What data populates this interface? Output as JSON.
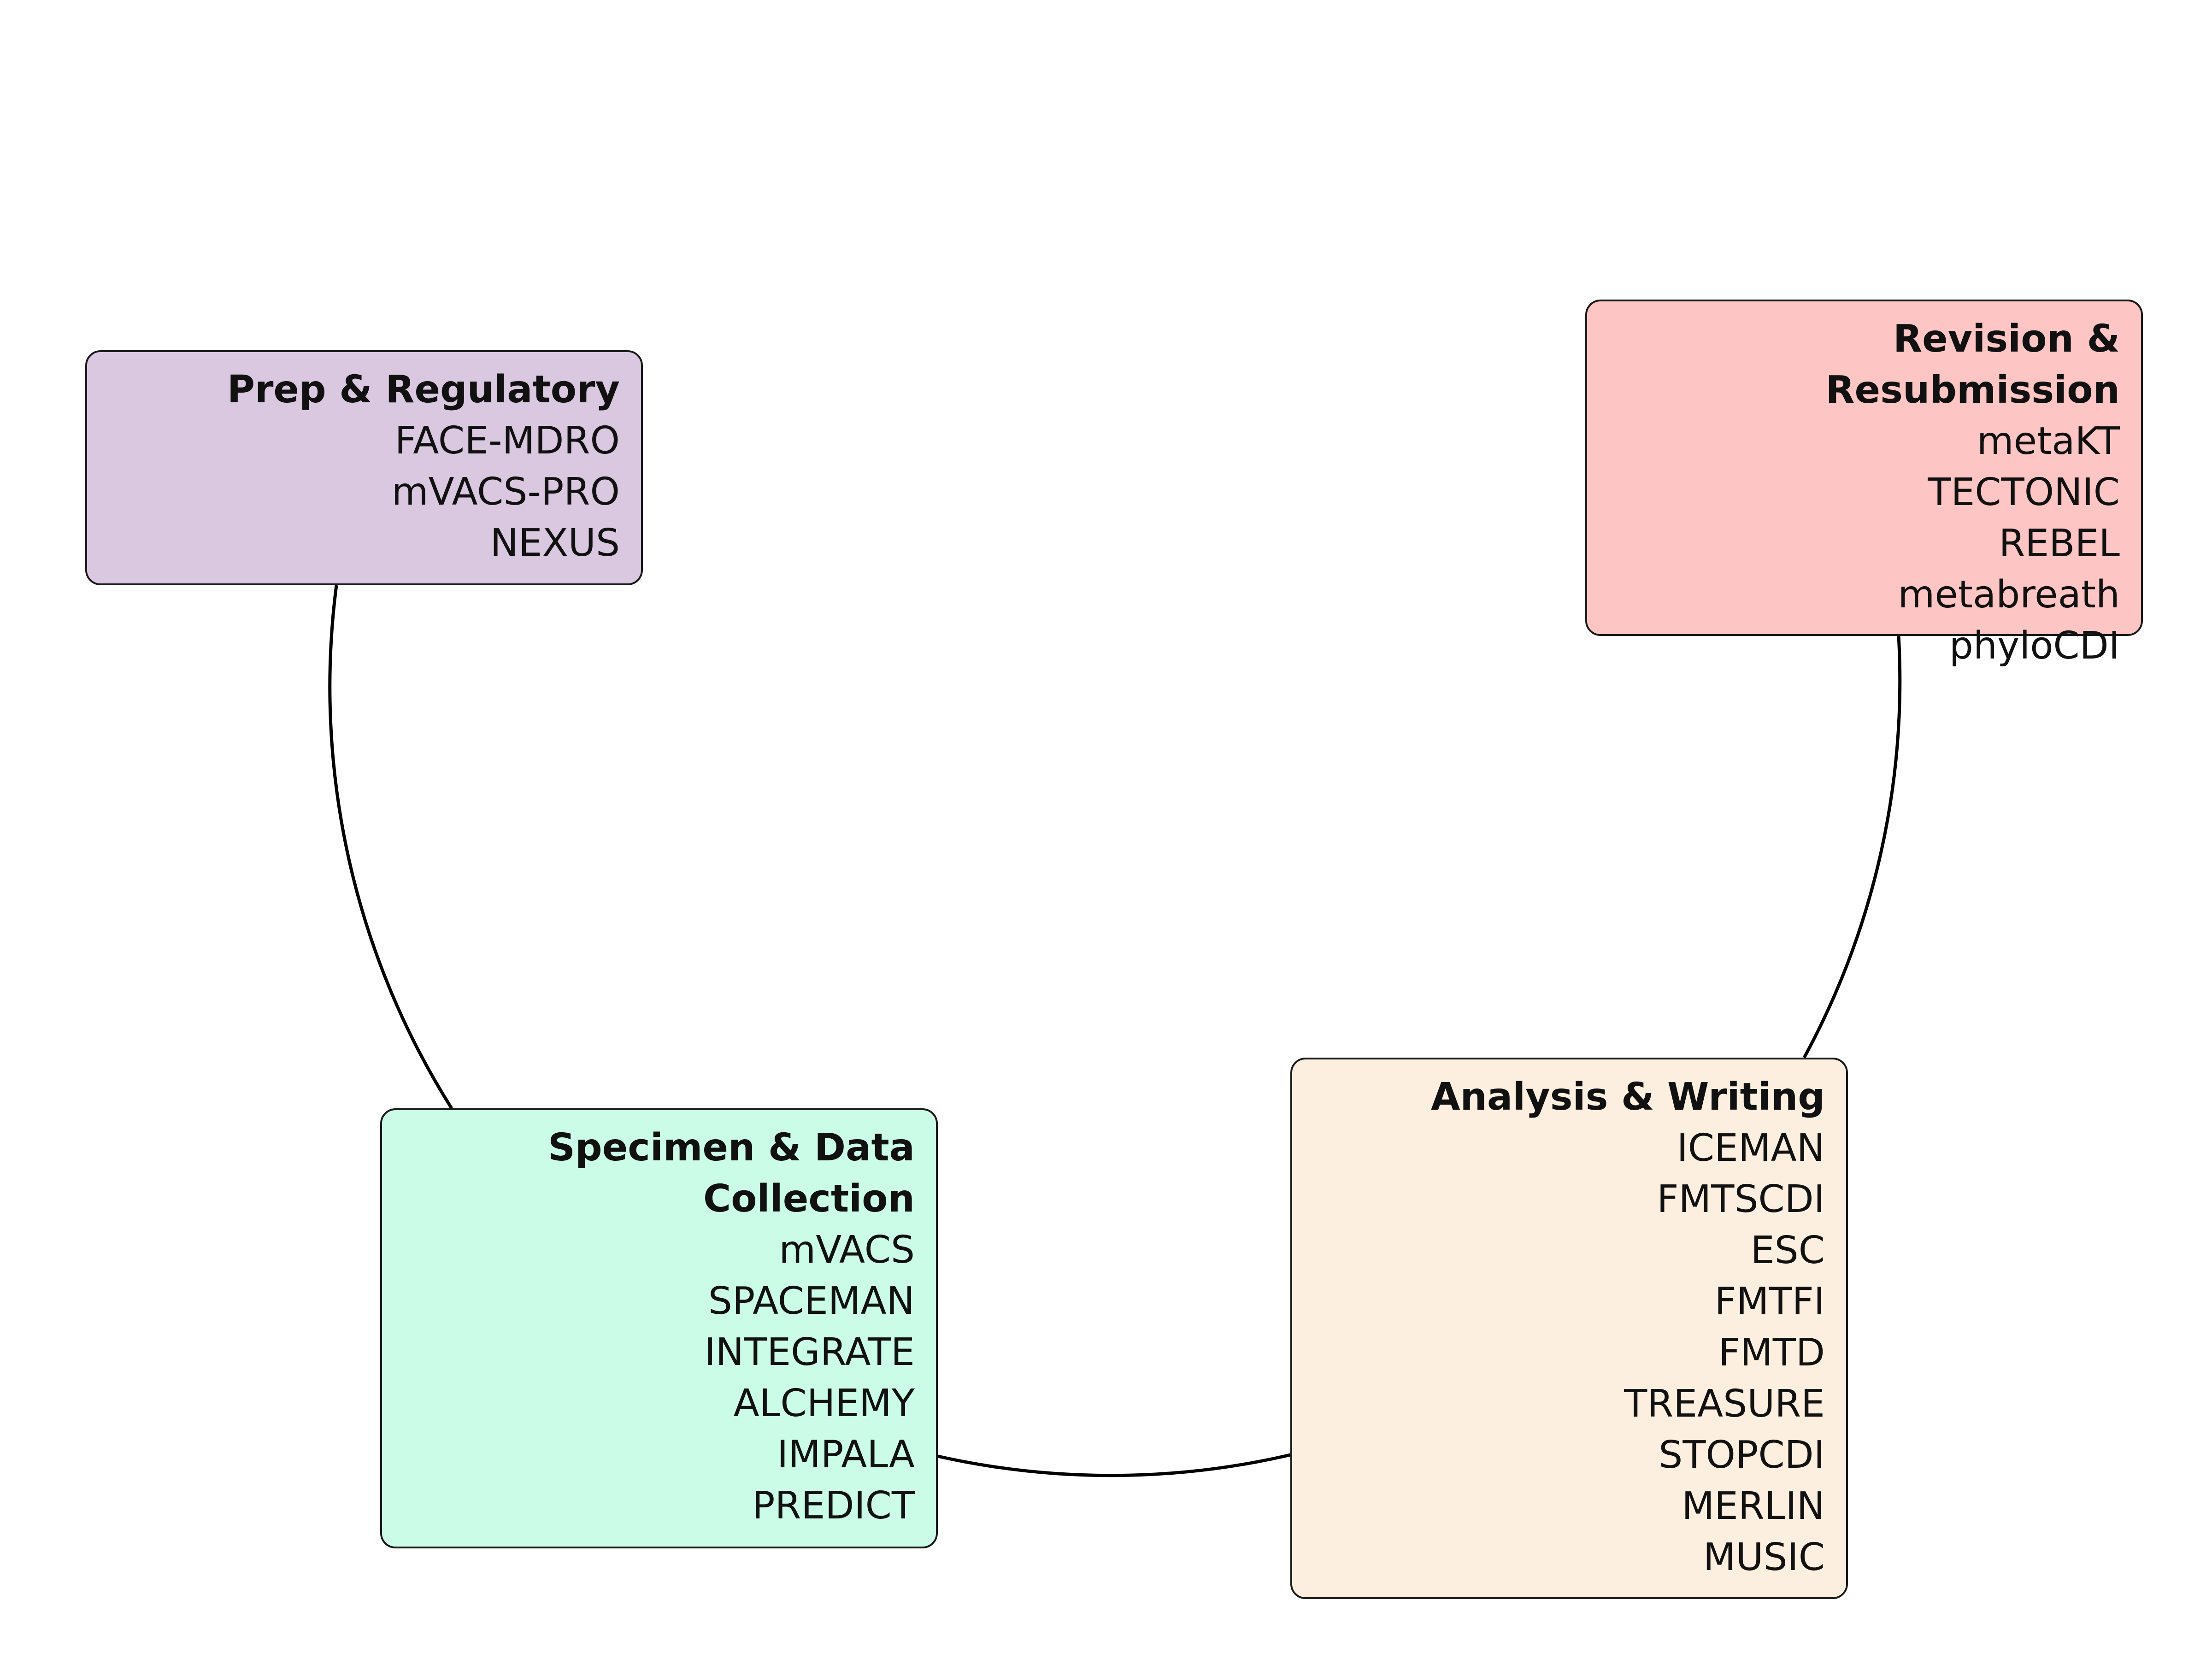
{
  "stages": [
    {
      "id": "prep",
      "title": "Prep & Regulatory",
      "color": "#d9c8e0",
      "items": [
        "FACE-MDRO",
        "mVACS-PRO",
        "NEXUS"
      ]
    },
    {
      "id": "revision",
      "title": "Revision & Resubmission",
      "color": "#fdc5c4",
      "items": [
        "metaKT",
        "TECTONIC",
        "REBEL",
        "metabreath",
        "phyloCDI"
      ]
    },
    {
      "id": "specimen",
      "title": "Specimen & Data Collection",
      "color": "#cbfce7",
      "items": [
        "mVACS",
        "SPACEMAN",
        "INTEGRATE",
        "ALCHEMY",
        "IMPALA",
        "PREDICT"
      ]
    },
    {
      "id": "analysis",
      "title": "Analysis & Writing",
      "color": "#fdefe0",
      "items": [
        "ICEMAN",
        "FMTSCDI",
        "ESC",
        "FMTFI",
        "FMTD",
        "TREASURE",
        "STOPCDI",
        "MERLIN",
        "MUSIC"
      ]
    }
  ],
  "connector_color": "#000000"
}
